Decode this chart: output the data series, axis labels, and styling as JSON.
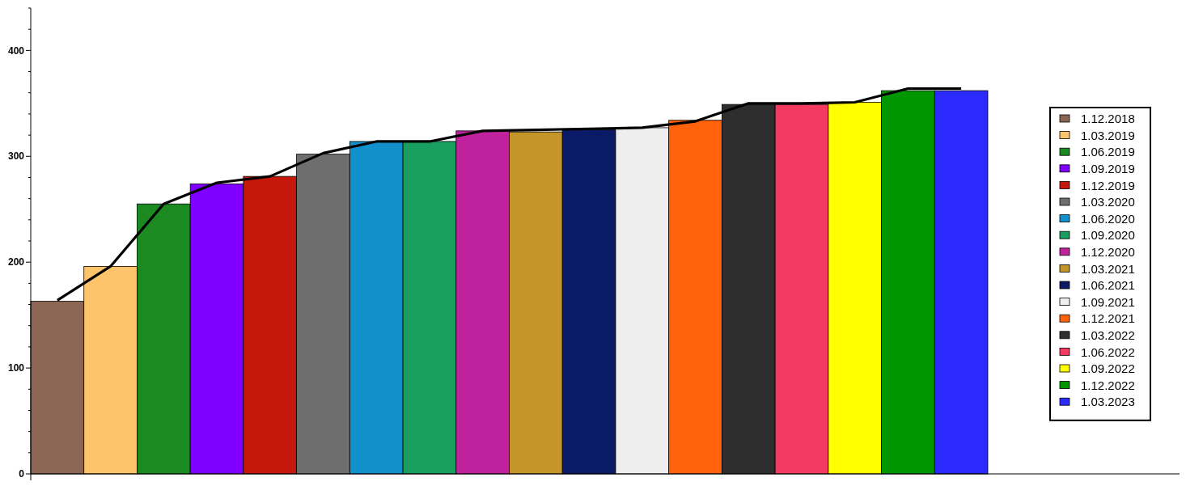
{
  "chart_data": {
    "type": "bar",
    "categories": [
      null,
      null,
      null,
      null,
      null,
      null,
      null,
      null,
      null,
      null,
      null,
      null,
      null,
      null,
      null,
      null,
      null,
      null
    ],
    "series": [
      {
        "name": "1.12.2018",
        "color": "#8b6655",
        "values": [
          163,
          null,
          null,
          null,
          null,
          null,
          null,
          null,
          null,
          null,
          null,
          null,
          null,
          null,
          null,
          null,
          null,
          null
        ]
      },
      {
        "name": "1.03.2019",
        "color": "#fdc46c",
        "values": [
          null,
          196,
          null,
          null,
          null,
          null,
          null,
          null,
          null,
          null,
          null,
          null,
          null,
          null,
          null,
          null,
          null,
          null
        ]
      },
      {
        "name": "1.06.2019",
        "color": "#1b8a21",
        "values": [
          null,
          null,
          255,
          null,
          null,
          null,
          null,
          null,
          null,
          null,
          null,
          null,
          null,
          null,
          null,
          null,
          null,
          null
        ]
      },
      {
        "name": "1.09.2019",
        "color": "#8000ff",
        "values": [
          null,
          null,
          null,
          274,
          null,
          null,
          null,
          null,
          null,
          null,
          null,
          null,
          null,
          null,
          null,
          null,
          null,
          null
        ]
      },
      {
        "name": "1.12.2019",
        "color": "#c5170a",
        "values": [
          null,
          null,
          null,
          null,
          281,
          null,
          null,
          null,
          null,
          null,
          null,
          null,
          null,
          null,
          null,
          null,
          null,
          null
        ]
      },
      {
        "name": "1.03.2020",
        "color": "#6e6e6e",
        "values": [
          null,
          null,
          null,
          null,
          null,
          302,
          null,
          null,
          null,
          null,
          null,
          null,
          null,
          null,
          null,
          null,
          null,
          null
        ]
      },
      {
        "name": "1.06.2020",
        "color": "#1290cc",
        "values": [
          null,
          null,
          null,
          null,
          null,
          null,
          314,
          null,
          null,
          null,
          null,
          null,
          null,
          null,
          null,
          null,
          null,
          null
        ]
      },
      {
        "name": "1.09.2020",
        "color": "#189e5e",
        "values": [
          null,
          null,
          null,
          null,
          null,
          null,
          null,
          314,
          null,
          null,
          null,
          null,
          null,
          null,
          null,
          null,
          null,
          null
        ]
      },
      {
        "name": "1.12.2020",
        "color": "#c0219c",
        "values": [
          null,
          null,
          null,
          null,
          null,
          null,
          null,
          null,
          324,
          null,
          null,
          null,
          null,
          null,
          null,
          null,
          null,
          null
        ]
      },
      {
        "name": "1.03.2021",
        "color": "#c49528",
        "values": [
          null,
          null,
          null,
          null,
          null,
          null,
          null,
          null,
          null,
          323,
          null,
          null,
          null,
          null,
          null,
          null,
          null,
          null
        ]
      },
      {
        "name": "1.06.2021",
        "color": "#0b1a66",
        "values": [
          null,
          null,
          null,
          null,
          null,
          null,
          null,
          null,
          null,
          null,
          325,
          null,
          null,
          null,
          null,
          null,
          null,
          null
        ]
      },
      {
        "name": "1.09.2021",
        "color": "#eeeeee",
        "values": [
          null,
          null,
          null,
          null,
          null,
          null,
          null,
          null,
          null,
          null,
          null,
          327,
          null,
          null,
          null,
          null,
          null,
          null
        ]
      },
      {
        "name": "1.12.2021",
        "color": "#ff620a",
        "values": [
          null,
          null,
          null,
          null,
          null,
          null,
          null,
          null,
          null,
          null,
          null,
          null,
          334,
          null,
          null,
          null,
          null,
          null
        ]
      },
      {
        "name": "1.03.2022",
        "color": "#2e2e2e",
        "values": [
          null,
          null,
          null,
          null,
          null,
          null,
          null,
          null,
          null,
          null,
          null,
          null,
          null,
          349,
          null,
          null,
          null,
          null
        ]
      },
      {
        "name": "1.06.2022",
        "color": "#f53a61",
        "values": [
          null,
          null,
          null,
          null,
          null,
          null,
          null,
          null,
          null,
          null,
          null,
          null,
          null,
          null,
          349,
          null,
          null,
          null
        ]
      },
      {
        "name": "1.09.2022",
        "color": "#ffff00",
        "values": [
          null,
          null,
          null,
          null,
          null,
          null,
          null,
          null,
          null,
          null,
          null,
          null,
          null,
          null,
          null,
          351,
          null,
          null
        ]
      },
      {
        "name": "1.12.2022",
        "color": "#009600",
        "values": [
          null,
          null,
          null,
          null,
          null,
          null,
          null,
          null,
          null,
          null,
          null,
          null,
          null,
          null,
          null,
          null,
          362,
          null
        ]
      },
      {
        "name": "1.03.2023",
        "color": "#2a2aff",
        "values": [
          null,
          null,
          null,
          null,
          null,
          null,
          null,
          null,
          null,
          null,
          null,
          null,
          null,
          null,
          null,
          null,
          null,
          362
        ]
      },
      {
        "type": "line",
        "color": "#000000",
        "values": [
          164,
          196,
          255,
          275,
          281,
          303,
          314,
          314,
          324,
          325,
          326,
          327,
          333,
          350,
          350,
          351,
          364,
          364
        ]
      }
    ],
    "ylim": [
      0,
      440
    ],
    "yticks": [
      0,
      {
        "value": 20,
        "label": null
      },
      {
        "value": 40,
        "label": null
      },
      {
        "value": 60,
        "label": null
      },
      {
        "value": 80,
        "label": null
      },
      100,
      {
        "value": 120,
        "label": null
      },
      {
        "value": 140,
        "label": null
      },
      {
        "value": 160,
        "label": null
      },
      {
        "value": 180,
        "label": null
      },
      200,
      {
        "value": 220,
        "label": null
      },
      {
        "value": 240,
        "label": null
      },
      {
        "value": 260,
        "label": null
      },
      {
        "value": 280,
        "label": null
      },
      300,
      {
        "value": 320,
        "label": null
      },
      {
        "value": 340,
        "label": null
      },
      {
        "value": 360,
        "label": null
      },
      {
        "value": 380,
        "label": null
      },
      400,
      {
        "value": 420,
        "label": null
      },
      {
        "value": 440,
        "label": null
      }
    ],
    "tick_labels": "y",
    "legend": "right"
  }
}
